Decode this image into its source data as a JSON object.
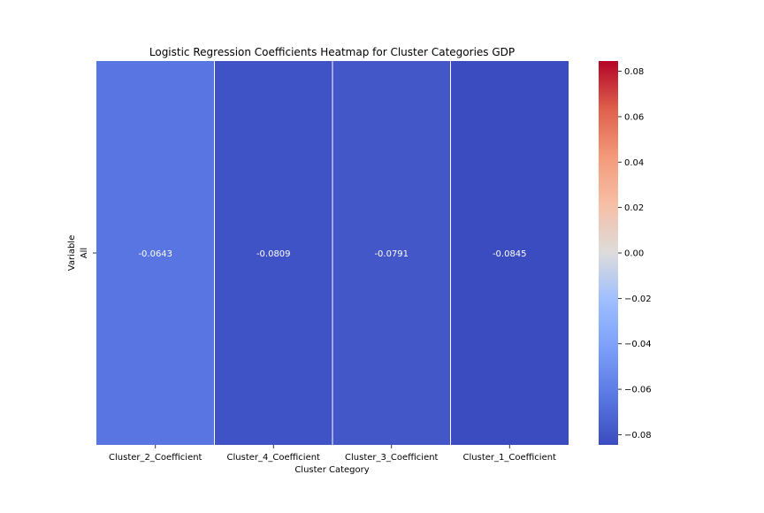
{
  "chart_data": {
    "type": "heatmap",
    "title": "Logistic Regression Coefficients Heatmap for Cluster Categories GDP",
    "xlabel": "Cluster Category",
    "ylabel": "Variable",
    "columns": [
      "Cluster_2_Coefficient",
      "Cluster_4_Coefficient",
      "Cluster_3_Coefficient",
      "Cluster_1_Coefficient"
    ],
    "rows": [
      "All"
    ],
    "values": [
      [
        -0.0643,
        -0.0809,
        -0.0791,
        -0.0845
      ]
    ],
    "annotations": [
      [
        "-0.0643",
        "-0.0809",
        "-0.0791",
        "-0.0845"
      ]
    ],
    "colormap": "coolwarm",
    "vmin": -0.0845,
    "vmax": 0.0845,
    "colorbar": {
      "ticks": [
        0.08,
        0.06,
        0.04,
        0.02,
        0.0,
        -0.02,
        -0.04,
        -0.06,
        -0.08
      ],
      "tick_labels": [
        "0.08",
        "0.06",
        "0.04",
        "0.02",
        "0.00",
        "−0.02",
        "−0.04",
        "−0.06",
        "−0.08"
      ]
    },
    "colors": {
      "cell_divider": "#ffffff",
      "annotation_text": "#ffffff",
      "text": "#000000"
    }
  }
}
